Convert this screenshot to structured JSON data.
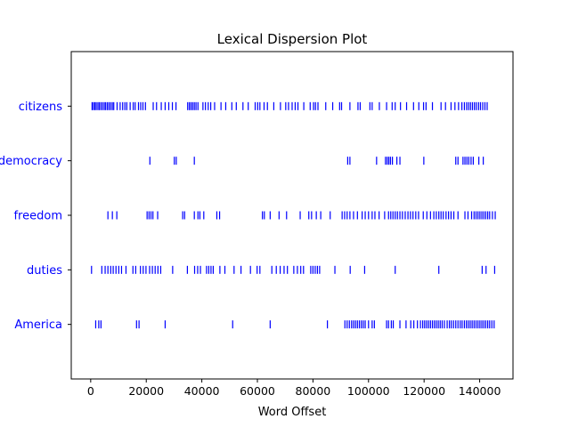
{
  "chart_data": {
    "type": "scatter",
    "title": "Lexical Dispersion Plot",
    "xlabel": "Word Offset",
    "ylabel": "",
    "xlim": [
      -7000,
      152000
    ],
    "xticks": [
      0,
      20000,
      40000,
      60000,
      80000,
      100000,
      120000,
      140000
    ],
    "xtick_labels": [
      "0",
      "20000",
      "40000",
      "60000",
      "80000",
      "100000",
      "120000",
      "140000"
    ],
    "grid": false,
    "marker": "|",
    "color": "#0000ff",
    "words": [
      "citizens",
      "democracy",
      "freedom",
      "duties",
      "America"
    ],
    "series": [
      {
        "name": "citizens",
        "offsets": [
          500,
          1000,
          1500,
          2000,
          2600,
          3100,
          3700,
          4300,
          4900,
          5400,
          6000,
          6600,
          7200,
          7800,
          8300,
          9500,
          10600,
          11500,
          12300,
          13000,
          14200,
          15300,
          16000,
          17200,
          18000,
          18800,
          19700,
          22500,
          23700,
          25400,
          26800,
          28100,
          29400,
          30700,
          34900,
          35500,
          36100,
          36700,
          37300,
          37900,
          38600,
          40400,
          41300,
          42300,
          43200,
          44600,
          46900,
          48600,
          50800,
          52400,
          54800,
          56700,
          59200,
          60100,
          60900,
          62400,
          63600,
          65900,
          68300,
          70200,
          71200,
          72500,
          73600,
          74600,
          76700,
          79000,
          80200,
          80900,
          81800,
          84600,
          87100,
          89600,
          90300,
          93300,
          96200,
          97000,
          100500,
          101300,
          103900,
          106500,
          108500,
          109600,
          111500,
          113700,
          116200,
          118100,
          119800,
          120700,
          123000,
          126100,
          127700,
          129700,
          131100,
          132400,
          133600,
          134500,
          135300,
          136000,
          136700,
          137400,
          138100,
          138800,
          139600,
          140300,
          141100,
          141900,
          142700
        ]
      },
      {
        "name": "democracy",
        "offsets": [
          21300,
          30100,
          30800,
          37300,
          92500,
          93300,
          102900,
          106100,
          106700,
          107300,
          107900,
          108600,
          110200,
          111300,
          119900,
          131400,
          132200,
          134000,
          134700,
          135400,
          136100,
          136900,
          137700,
          139700,
          141300
        ]
      },
      {
        "name": "freedom",
        "offsets": [
          6200,
          7800,
          9400,
          20300,
          21000,
          21700,
          22400,
          24100,
          33100,
          33800,
          37300,
          38600,
          39300,
          40700,
          45400,
          46400,
          61800,
          62500,
          64600,
          67800,
          70500,
          75400,
          78500,
          79500,
          81200,
          82800,
          86200,
          90500,
          91400,
          92300,
          93300,
          94600,
          96000,
          97700,
          98800,
          100000,
          101300,
          102300,
          103800,
          105800,
          107200,
          108000,
          108800,
          109600,
          110400,
          111300,
          112200,
          113200,
          114200,
          115100,
          116000,
          117000,
          118000,
          119700,
          121000,
          122300,
          123500,
          124400,
          125300,
          126100,
          126900,
          127900,
          128800,
          129700,
          130700,
          132200,
          134700,
          135800,
          137100,
          138000,
          138700,
          139400,
          140100,
          140800,
          141500,
          142200,
          142900,
          143600,
          144600,
          145600
        ]
      },
      {
        "name": "duties",
        "offsets": [
          300,
          4000,
          5200,
          6200,
          7200,
          8100,
          9100,
          10100,
          11100,
          12700,
          15200,
          16200,
          17900,
          18900,
          19900,
          21200,
          22200,
          23200,
          24200,
          25200,
          29500,
          34800,
          37400,
          38500,
          39500,
          41700,
          42500,
          43300,
          44100,
          46500,
          48300,
          51600,
          54100,
          57500,
          59900,
          60900,
          65200,
          66800,
          68200,
          69600,
          70800,
          73100,
          74400,
          75600,
          76600,
          79200,
          80000,
          80800,
          81600,
          82400,
          87900,
          93400,
          98600,
          109600,
          125300,
          140900,
          142300,
          145400
        ]
      },
      {
        "name": "America",
        "offsets": [
          1800,
          2900,
          3700,
          16500,
          17400,
          26800,
          51100,
          64600,
          85200,
          91500,
          92300,
          93100,
          93900,
          94600,
          95300,
          96000,
          96700,
          97400,
          98100,
          98800,
          100000,
          101300,
          102100,
          106500,
          107200,
          108200,
          108900,
          111300,
          113500,
          115200,
          116300,
          117600,
          118700,
          119500,
          120200,
          120900,
          121600,
          122300,
          123000,
          123700,
          124400,
          125100,
          125800,
          126500,
          127300,
          128300,
          129100,
          129800,
          130600,
          131400,
          132200,
          133000,
          133700,
          134500,
          135200,
          135900,
          136600,
          137300,
          138000,
          138700,
          139400,
          140100,
          140800,
          141500,
          142200,
          142900,
          143600,
          144400,
          145200
        ]
      }
    ]
  }
}
